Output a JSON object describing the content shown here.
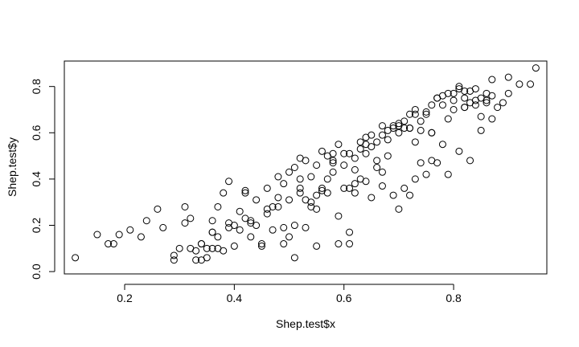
{
  "chart_data": {
    "type": "scatter",
    "title": "",
    "xlabel": "Shep.test$x",
    "ylabel": "Shep.test$y",
    "xlim": [
      0.09,
      0.97
    ],
    "ylim": [
      -0.01,
      0.91
    ],
    "xticks": [
      0.2,
      0.4,
      0.6,
      0.8
    ],
    "xtick_labels": [
      "0.2",
      "0.4",
      "0.6",
      "0.8"
    ],
    "yticks": [
      0.0,
      0.2,
      0.4,
      0.6,
      0.8
    ],
    "ytick_labels": [
      "0.0",
      "0.2",
      "0.4",
      "0.6",
      "0.8"
    ],
    "grid": false,
    "legend": "none",
    "series": [
      {
        "x": [
          0.11,
          0.15,
          0.17,
          0.18,
          0.19,
          0.21,
          0.23,
          0.24,
          0.26,
          0.27,
          0.29,
          0.3,
          0.31,
          0.32,
          0.33,
          0.34,
          0.34,
          0.35,
          0.36,
          0.36,
          0.36,
          0.37,
          0.38,
          0.38,
          0.39,
          0.4,
          0.41,
          0.42,
          0.43,
          0.44,
          0.45,
          0.46,
          0.47,
          0.48,
          0.49,
          0.5,
          0.51,
          0.52,
          0.53,
          0.54,
          0.55,
          0.56,
          0.57,
          0.58,
          0.59,
          0.6,
          0.61,
          0.62,
          0.63,
          0.64,
          0.65,
          0.66,
          0.67,
          0.68,
          0.69,
          0.7,
          0.71,
          0.72,
          0.73,
          0.74,
          0.75,
          0.76,
          0.77,
          0.78,
          0.79,
          0.8,
          0.81,
          0.82,
          0.83,
          0.84,
          0.85,
          0.86,
          0.87,
          0.89,
          0.9,
          0.92,
          0.94,
          0.95,
          0.31,
          0.33,
          0.35,
          0.37,
          0.39,
          0.41,
          0.43,
          0.45,
          0.47,
          0.49,
          0.51,
          0.53,
          0.55,
          0.57,
          0.59,
          0.61,
          0.63,
          0.65,
          0.67,
          0.69,
          0.71,
          0.73,
          0.75,
          0.77,
          0.79,
          0.81,
          0.83,
          0.85,
          0.87,
          0.36,
          0.39,
          0.42,
          0.44,
          0.46,
          0.48,
          0.5,
          0.52,
          0.54,
          0.56,
          0.58,
          0.6,
          0.62,
          0.64,
          0.66,
          0.68,
          0.7,
          0.72,
          0.74,
          0.76,
          0.78,
          0.8,
          0.82,
          0.84,
          0.86,
          0.88,
          0.9,
          0.48,
          0.51,
          0.53,
          0.55,
          0.57,
          0.59,
          0.61,
          0.63,
          0.65,
          0.67,
          0.69,
          0.71,
          0.73,
          0.75,
          0.77,
          0.79,
          0.81,
          0.83,
          0.85,
          0.87,
          0.29,
          0.34,
          0.37,
          0.4,
          0.43,
          0.46,
          0.49,
          0.52,
          0.55,
          0.58,
          0.61,
          0.64,
          0.67,
          0.7,
          0.73,
          0.76,
          0.5,
          0.54,
          0.58,
          0.62,
          0.66,
          0.7,
          0.74,
          0.78,
          0.82,
          0.86,
          0.32,
          0.42,
          0.52,
          0.62,
          0.72,
          0.82,
          0.56,
          0.6,
          0.64,
          0.68,
          0.72,
          0.76,
          0.8,
          0.84
        ],
        "y": [
          0.06,
          0.16,
          0.12,
          0.12,
          0.16,
          0.18,
          0.15,
          0.22,
          0.27,
          0.19,
          0.07,
          0.1,
          0.28,
          0.23,
          0.09,
          0.05,
          0.12,
          0.06,
          0.22,
          0.17,
          0.1,
          0.28,
          0.34,
          0.09,
          0.21,
          0.11,
          0.26,
          0.35,
          0.21,
          0.31,
          0.12,
          0.36,
          0.18,
          0.28,
          0.12,
          0.15,
          0.2,
          0.49,
          0.31,
          0.3,
          0.33,
          0.52,
          0.4,
          0.48,
          0.24,
          0.46,
          0.51,
          0.38,
          0.56,
          0.55,
          0.59,
          0.48,
          0.63,
          0.57,
          0.62,
          0.6,
          0.65,
          0.62,
          0.7,
          0.65,
          0.68,
          0.6,
          0.75,
          0.72,
          0.66,
          0.74,
          0.79,
          0.71,
          0.73,
          0.72,
          0.67,
          0.74,
          0.76,
          0.73,
          0.84,
          0.81,
          0.81,
          0.88,
          0.21,
          0.05,
          0.1,
          0.1,
          0.19,
          0.18,
          0.22,
          0.11,
          0.28,
          0.19,
          0.06,
          0.19,
          0.11,
          0.34,
          0.12,
          0.17,
          0.4,
          0.32,
          0.37,
          0.33,
          0.36,
          0.4,
          0.42,
          0.47,
          0.42,
          0.52,
          0.48,
          0.61,
          0.66,
          0.17,
          0.39,
          0.34,
          0.2,
          0.27,
          0.41,
          0.31,
          0.4,
          0.28,
          0.35,
          0.51,
          0.36,
          0.34,
          0.39,
          0.45,
          0.5,
          0.27,
          0.33,
          0.47,
          0.48,
          0.55,
          0.7,
          0.71,
          0.74,
          0.77,
          0.71,
          0.77,
          0.32,
          0.45,
          0.48,
          0.46,
          0.5,
          0.55,
          0.36,
          0.53,
          0.54,
          0.59,
          0.63,
          0.62,
          0.68,
          0.69,
          0.75,
          0.77,
          0.8,
          0.78,
          0.75,
          0.83,
          0.05,
          0.12,
          0.15,
          0.2,
          0.15,
          0.25,
          0.38,
          0.34,
          0.27,
          0.47,
          0.12,
          0.51,
          0.43,
          0.64,
          0.56,
          0.6,
          0.43,
          0.41,
          0.43,
          0.49,
          0.56,
          0.63,
          0.61,
          0.76,
          0.75,
          0.73,
          0.1,
          0.23,
          0.36,
          0.44,
          0.62,
          0.78,
          0.36,
          0.51,
          0.58,
          0.61,
          0.68,
          0.72,
          0.77,
          0.79
        ]
      }
    ]
  }
}
